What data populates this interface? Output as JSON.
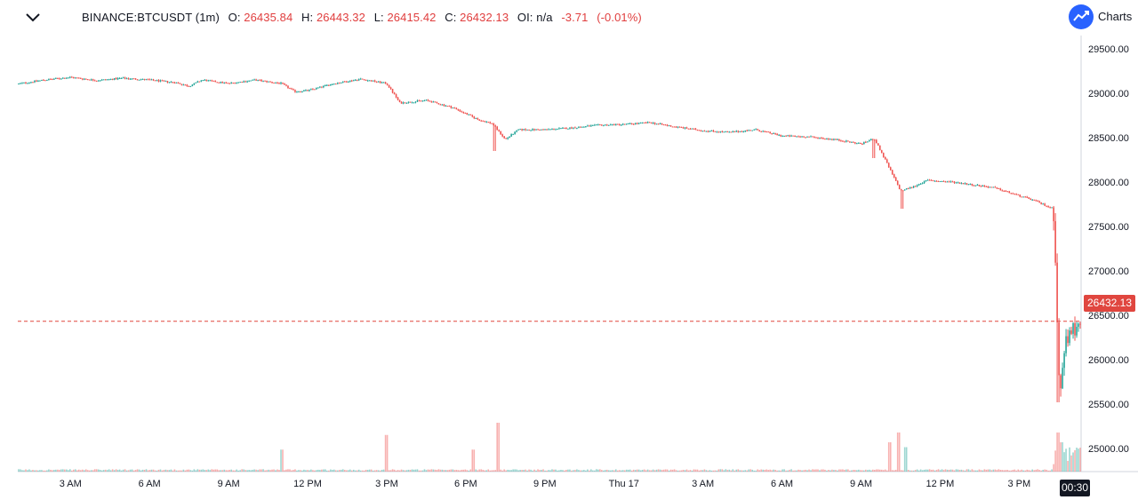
{
  "header": {
    "symbol": "BINANCE:BTCUSDT (1m)",
    "o_label": "O:",
    "o_value": "26435.84",
    "h_label": "H:",
    "h_value": "26443.32",
    "l_label": "L:",
    "l_value": "26415.42",
    "c_label": "C:",
    "c_value": "26432.13",
    "oi_label": "OI:",
    "oi_value": "n/a",
    "change": "-3.71",
    "change_pct": "(-0.01%)",
    "brand": "Charts",
    "chevron_icon": "chevron-down-icon",
    "logo_icon": "trend-up-logo-icon"
  },
  "colors": {
    "up": "#26a69a",
    "down": "#ef5350",
    "last_price": "#e0463f",
    "axis_text": "#131722"
  },
  "last_price": {
    "value": 26432.13,
    "label": "26432.13"
  },
  "crosshair_time": {
    "label": "00:30"
  },
  "chart_data": {
    "type": "candlestick",
    "title": "",
    "y_axis": {
      "position": "right",
      "ticks": [
        25000,
        25500,
        26000,
        26500,
        27000,
        27500,
        28000,
        28500,
        29000,
        29500
      ],
      "tick_labels": [
        "25000.00",
        "25500.00",
        "26000.00",
        "26500.00",
        "27000.00",
        "27500.00",
        "28000.00",
        "28500.00",
        "29000.00",
        "29500.00"
      ],
      "range": [
        24740,
        29650
      ]
    },
    "x_axis": {
      "ticks": [
        "3 AM",
        "6 AM",
        "9 AM",
        "12 PM",
        "3 PM",
        "6 PM",
        "9 PM",
        "Thu 17",
        "3 AM",
        "6 AM",
        "9 AM",
        "12 PM",
        "3 PM"
      ],
      "tick_hours": [
        3,
        6,
        9,
        12,
        15,
        18,
        21,
        24,
        27,
        30,
        33,
        36,
        39
      ],
      "range_hours": [
        1.0,
        41.35
      ]
    },
    "price_path": [
      {
        "t": 1.0,
        "p": 29105
      },
      {
        "t": 2.0,
        "p": 29150
      },
      {
        "t": 3.0,
        "p": 29180
      },
      {
        "t": 4.0,
        "p": 29145
      },
      {
        "t": 5.0,
        "p": 29170
      },
      {
        "t": 6.0,
        "p": 29150
      },
      {
        "t": 7.0,
        "p": 29120
      },
      {
        "t": 7.5,
        "p": 29080
      },
      {
        "t": 8.0,
        "p": 29150
      },
      {
        "t": 9.0,
        "p": 29110
      },
      {
        "t": 10.0,
        "p": 29150
      },
      {
        "t": 11.0,
        "p": 29110
      },
      {
        "t": 11.5,
        "p": 29020
      },
      {
        "t": 12.0,
        "p": 29030
      },
      {
        "t": 13.0,
        "p": 29110
      },
      {
        "t": 14.0,
        "p": 29160
      },
      {
        "t": 15.0,
        "p": 29110
      },
      {
        "t": 15.5,
        "p": 28890
      },
      {
        "t": 16.5,
        "p": 28920
      },
      {
        "t": 17.5,
        "p": 28840
      },
      {
        "t": 18.5,
        "p": 28700
      },
      {
        "t": 19.0,
        "p": 28660
      },
      {
        "t": 19.5,
        "p": 28480
      },
      {
        "t": 20.0,
        "p": 28590
      },
      {
        "t": 21.0,
        "p": 28590
      },
      {
        "t": 22.0,
        "p": 28610
      },
      {
        "t": 23.0,
        "p": 28640
      },
      {
        "t": 24.0,
        "p": 28650
      },
      {
        "t": 25.0,
        "p": 28670
      },
      {
        "t": 26.0,
        "p": 28620
      },
      {
        "t": 27.0,
        "p": 28580
      },
      {
        "t": 28.0,
        "p": 28560
      },
      {
        "t": 29.0,
        "p": 28590
      },
      {
        "t": 30.0,
        "p": 28520
      },
      {
        "t": 31.0,
        "p": 28510
      },
      {
        "t": 32.0,
        "p": 28480
      },
      {
        "t": 33.0,
        "p": 28430
      },
      {
        "t": 33.5,
        "p": 28490
      },
      {
        "t": 34.0,
        "p": 28200
      },
      {
        "t": 34.5,
        "p": 27900
      },
      {
        "t": 35.0,
        "p": 27950
      },
      {
        "t": 35.5,
        "p": 28020
      },
      {
        "t": 36.5,
        "p": 28000
      },
      {
        "t": 38.0,
        "p": 27940
      },
      {
        "t": 39.5,
        "p": 27800
      },
      {
        "t": 40.3,
        "p": 27700
      },
      {
        "t": 40.45,
        "p": 26400
      },
      {
        "t": 40.55,
        "p": 25550
      },
      {
        "t": 40.75,
        "p": 26200
      },
      {
        "t": 41.0,
        "p": 26300
      },
      {
        "t": 41.3,
        "p": 26432
      }
    ],
    "dips": [
      {
        "t": 19.1,
        "low": 28350
      },
      {
        "t": 33.5,
        "low": 28270
      },
      {
        "t": 34.55,
        "low": 27700
      },
      {
        "t": 40.5,
        "low": 25520
      }
    ],
    "volume_spikes": [
      {
        "t": 11.0,
        "v": 0.45
      },
      {
        "t": 15.0,
        "v": 0.75
      },
      {
        "t": 18.3,
        "v": 0.45
      },
      {
        "t": 19.2,
        "v": 1.0
      },
      {
        "t": 34.1,
        "v": 0.6
      },
      {
        "t": 34.4,
        "v": 0.8
      },
      {
        "t": 34.7,
        "v": 0.5
      },
      {
        "t": 40.45,
        "v": 0.8
      },
      {
        "t": 40.6,
        "v": 0.6
      }
    ]
  }
}
